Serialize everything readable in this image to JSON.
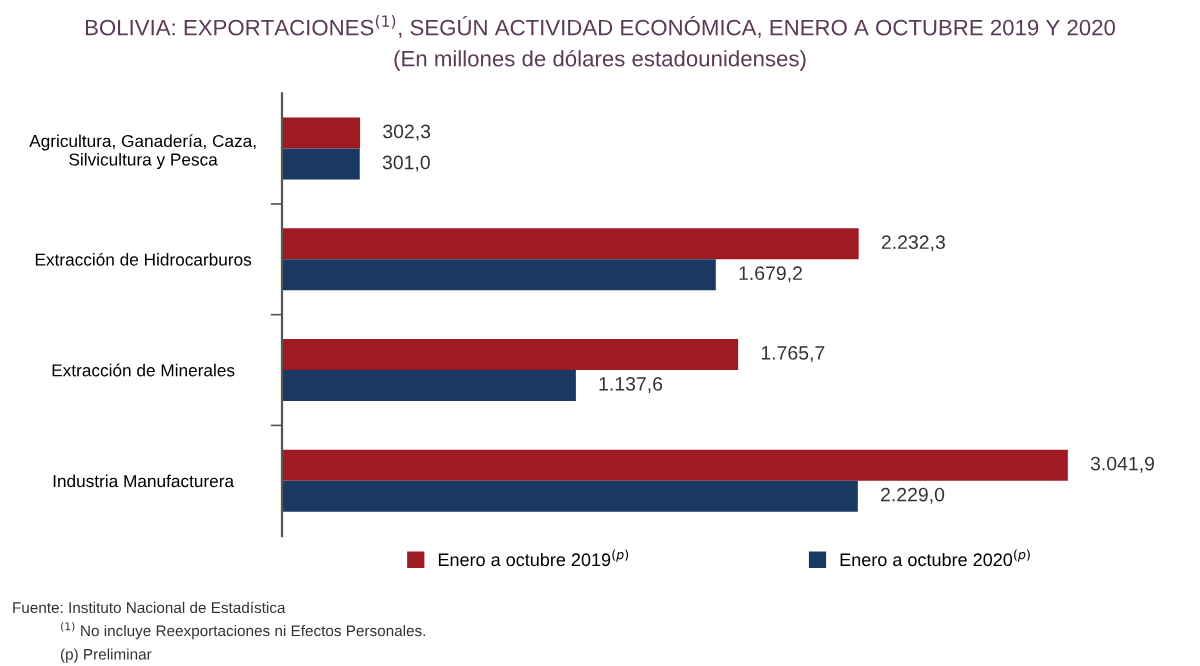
{
  "chart_data": {
    "type": "bar",
    "orientation": "horizontal",
    "title": "BOLIVIA: EXPORTACIONES$^{(1)}$, SEGÚN ACTIVIDAD ECONÓMICA, ENERO A OCTUBRE 2019 Y 2020",
    "subtitle": "(En millones de dólares estadounidenses)",
    "categories": [
      "Agricultura, Ganadería, Caza,\nSilvicultura y Pesca",
      "Extracción de Hidrocarburos",
      "Extracción de Minerales",
      "Industria Manufacturera"
    ],
    "series": [
      {
        "name": "Enero a octubre 2019$^{(p)}$",
        "color": "#9e1b24",
        "values": [
          302.3,
          2232.3,
          1765.7,
          3041.9
        ],
        "value_labels": [
          "302,3",
          "2.232,3",
          "1.765,7",
          "3.041,9"
        ]
      },
      {
        "name": "Enero a octubre 2020$^{(p)}$",
        "color": "#1a3a63",
        "values": [
          301.0,
          1679.2,
          1137.6,
          2229.0
        ],
        "value_labels": [
          "301,0",
          "1.679,2",
          "1.137,6",
          "2.229,0"
        ]
      }
    ],
    "legend": "bottom",
    "grid": false,
    "annotations": [
      "Fuente: Instituto Nacional de Estadística",
      "$^{(1)}$ No incluye Reexportaciones ni Efectos Personales.",
      "(p) Preliminar"
    ]
  }
}
